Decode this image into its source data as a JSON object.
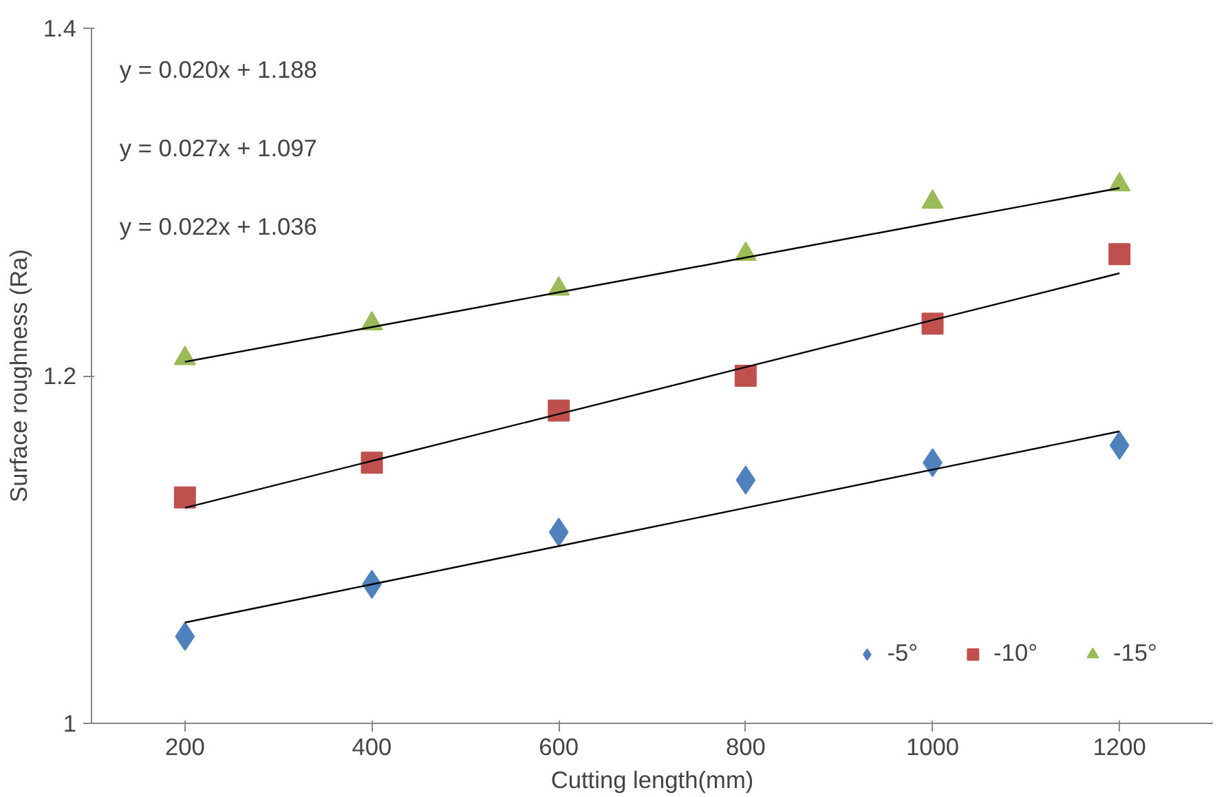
{
  "chart_data": {
    "type": "scatter",
    "xlabel": "Cutting length(mm)",
    "ylabel": "Surface roughness (Ra)",
    "categories": [
      "200",
      "400",
      "600",
      "800",
      "1000",
      "1200"
    ],
    "ylim": [
      1,
      1.4
    ],
    "yticks": [
      1,
      1.2,
      1.4
    ],
    "grid": false,
    "legend": "bottom right",
    "annotations": [
      "y = 0.020x + 1.188",
      "y = 0.027x + 1.097",
      "y = 0.022x + 1.036"
    ],
    "series": [
      {
        "name": "-5°",
        "color": "#4f81bd",
        "marker": "diamond",
        "values": [
          1.05,
          1.08,
          1.11,
          1.14,
          1.15,
          1.16
        ]
      },
      {
        "name": "-10°",
        "color": "#c0504d",
        "marker": "square",
        "values": [
          1.13,
          1.15,
          1.18,
          1.2,
          1.23,
          1.27
        ]
      },
      {
        "name": "-15°",
        "color": "#9bbb59",
        "marker": "triangle",
        "values": [
          1.21,
          1.23,
          1.25,
          1.27,
          1.3,
          1.31
        ]
      },
      {
        "type": "line",
        "color": "#000000",
        "marker": "none",
        "values": [
          1.058,
          1.08,
          1.102,
          1.124,
          1.146,
          1.168
        ]
      },
      {
        "type": "line",
        "color": "#000000",
        "marker": "none",
        "values": [
          1.124,
          1.151,
          1.178,
          1.205,
          1.232,
          1.259
        ]
      },
      {
        "type": "line",
        "color": "#000000",
        "marker": "none",
        "values": [
          1.208,
          1.228,
          1.248,
          1.268,
          1.288,
          1.308
        ]
      }
    ]
  }
}
